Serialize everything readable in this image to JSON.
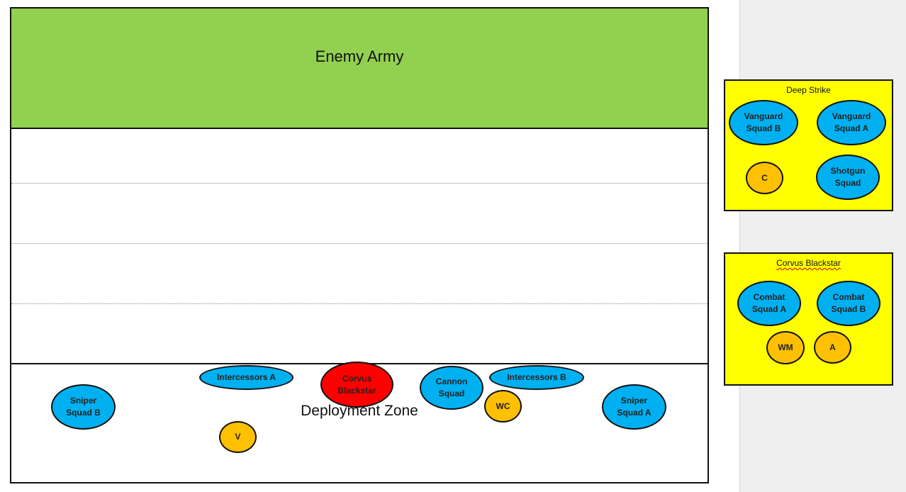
{
  "board": {
    "enemy_label": "Enemy Army",
    "deployment_label": "Deployment Zone",
    "units": {
      "intercessors_a": "Intercessors A",
      "corvus_blackstar": "Corvus Blackstar",
      "cannon_squad": "Cannon Squad",
      "intercessors_b": "Intercessors B",
      "sniper_squad_b": "Sniper Squad B",
      "sniper_squad_a": "Sniper Squad A",
      "wc": "WC",
      "v": "V"
    }
  },
  "deep_strike_panel": {
    "title": "Deep Strike",
    "units": {
      "vanguard_squad_b": "Vanguard Squad B",
      "vanguard_squad_a": "Vanguard Squad A",
      "c": "C",
      "shotgun_squad": "Shotgun Squad"
    }
  },
  "corvus_panel": {
    "title": "Corvus Blackstar",
    "units": {
      "combat_squad_a": "Combat Squad A",
      "combat_squad_b": "Combat Squad B",
      "wm": "WM",
      "a": "A"
    }
  },
  "colors": {
    "enemy_zone": "#92d050",
    "infantry": "#00b0f0",
    "character": "#ffc000",
    "flyer": "#ff0000",
    "reserve_panel": "#ffff00"
  }
}
